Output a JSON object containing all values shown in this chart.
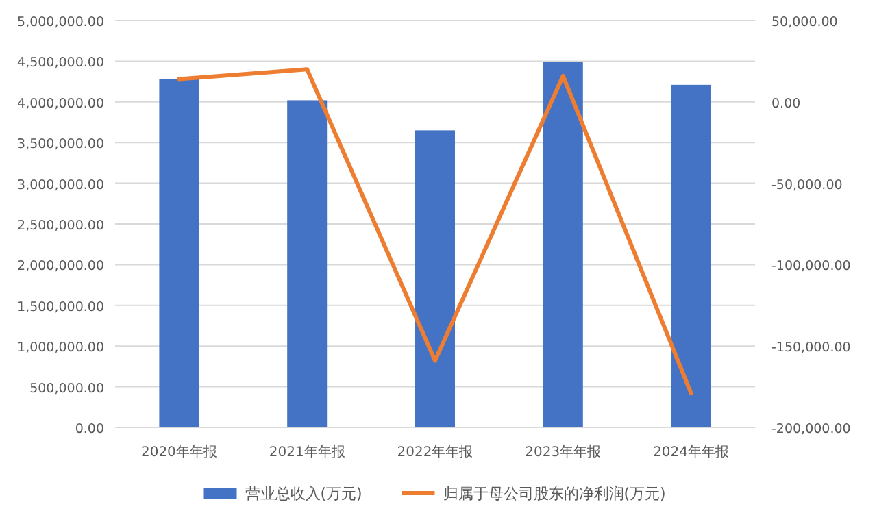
{
  "chart_data": {
    "type": "bar",
    "categories": [
      "2020年年报",
      "2021年年报",
      "2022年年报",
      "2023年年报",
      "2024年年报"
    ],
    "series": [
      {
        "name": "营业总收入(万元)",
        "color": "#4472c4",
        "values": [
          4280000,
          4020000,
          3650000,
          4490000,
          4210000
        ]
      },
      {
        "name": "归属于母公司股东的净利润(万元)",
        "type": "line",
        "axis": "y2",
        "color": "#ed7d31",
        "values": [
          14000,
          20000,
          -159000,
          16000,
          -179000
        ]
      }
    ],
    "ylim": [
      0,
      5000000
    ],
    "yticks": [
      {
        "value": 0,
        "label": "0.00"
      },
      {
        "value": 500000,
        "label": "500,000.00"
      },
      {
        "value": 1000000,
        "label": "1,000,000.00"
      },
      {
        "value": 1500000,
        "label": "1,500,000.00"
      },
      {
        "value": 2000000,
        "label": "2,000,000.00"
      },
      {
        "value": 2500000,
        "label": "2,500,000.00"
      },
      {
        "value": 3000000,
        "label": "3,000,000.00"
      },
      {
        "value": 3500000,
        "label": "3,500,000.00"
      },
      {
        "value": 4000000,
        "label": "4,000,000.00"
      },
      {
        "value": 4500000,
        "label": "4,500,000.00"
      },
      {
        "value": 5000000,
        "label": "5,000,000.00"
      }
    ],
    "y2lim": [
      -200000,
      50000
    ],
    "y2ticks": [
      {
        "value": -200000,
        "label": "-200,000.00"
      },
      {
        "value": -150000,
        "label": "-150,000.00"
      },
      {
        "value": -100000,
        "label": "-100,000.00"
      },
      {
        "value": -50000,
        "label": "-50,000.00"
      },
      {
        "value": 0,
        "label": "0.00"
      },
      {
        "value": 50000,
        "label": "50,000.00"
      }
    ],
    "grid": "y",
    "legend": "bottom"
  }
}
